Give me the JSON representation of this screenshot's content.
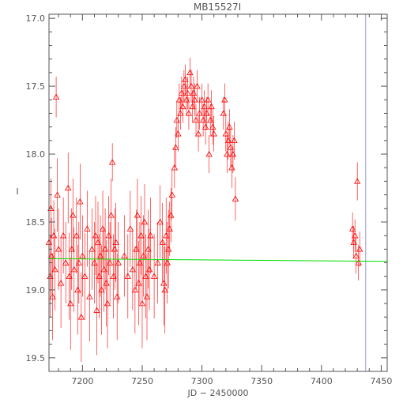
{
  "chart_data": {
    "type": "scatter",
    "title": "MB15527I",
    "xlabel": "JD − 2450000",
    "ylabel": "I",
    "xlim": [
      7172,
      7455
    ],
    "ylim": [
      19.6,
      16.97
    ],
    "y_axis_inverted": true,
    "x_ticks": [
      "7200",
      "7250",
      "7300",
      "7350",
      "7400",
      "7450"
    ],
    "y_ticks": [
      "17.0",
      "17.5",
      "18.0",
      "18.5",
      "19.0",
      "19.5"
    ],
    "grid": false,
    "legend": "none",
    "colors": {
      "points": "#ff0000",
      "baseline": "#00dd00",
      "marker": "#9999cc",
      "axes": "#555555"
    },
    "baseline": {
      "x": [
        7172,
        7455
      ],
      "y": [
        18.77,
        18.79
      ]
    },
    "vertical_marker_x": 7437,
    "series": [
      {
        "marker": "open-triangle",
        "x": [
          7172,
          7173,
          7173.5,
          7174,
          7175,
          7176,
          7177,
          7178,
          7179,
          7180,
          7182,
          7184,
          7186,
          7188,
          7189,
          7190,
          7191,
          7192,
          7193,
          7195,
          7196,
          7197,
          7198,
          7199,
          7200,
          7202,
          7204,
          7206,
          7208,
          7210,
          7211,
          7212,
          7213,
          7214,
          7215,
          7216,
          7217,
          7218,
          7219,
          7220,
          7221,
          7222,
          7223,
          7224,
          7225,
          7226,
          7227,
          7228,
          7229,
          7230,
          7235,
          7238,
          7240,
          7242,
          7244,
          7245,
          7246,
          7247,
          7248,
          7249,
          7250,
          7251,
          7252,
          7253,
          7254,
          7255,
          7256,
          7257,
          7260,
          7263,
          7265,
          7267,
          7268,
          7269,
          7270,
          7271,
          7272,
          7273,
          7274,
          7275,
          7277,
          7278,
          7279,
          7280,
          7281,
          7282,
          7283,
          7284,
          7285,
          7286,
          7287,
          7288,
          7289,
          7290,
          7291,
          7292,
          7293,
          7294,
          7295,
          7296,
          7297,
          7298,
          7300,
          7301,
          7302,
          7303,
          7304,
          7305,
          7306,
          7307,
          7308,
          7309,
          7310,
          7318,
          7319,
          7320,
          7321,
          7322,
          7323,
          7324,
          7325,
          7326,
          7327,
          7328,
          7426,
          7427,
          7428,
          7429,
          7430,
          7431,
          7432
        ],
        "y": [
          18.65,
          18.9,
          18.4,
          18.75,
          19.05,
          18.6,
          18.85,
          17.58,
          18.3,
          18.7,
          18.95,
          18.6,
          18.8,
          18.25,
          18.9,
          19.1,
          18.7,
          18.45,
          18.85,
          18.6,
          19.0,
          18.8,
          18.35,
          19.2,
          18.75,
          18.9,
          18.55,
          19.05,
          18.7,
          18.8,
          18.6,
          19.15,
          18.65,
          18.9,
          18.75,
          19.0,
          18.55,
          18.85,
          18.7,
          18.95,
          19.1,
          18.6,
          18.8,
          18.45,
          18.06,
          18.9,
          18.7,
          18.65,
          19.05,
          18.8,
          18.75,
          18.9,
          18.55,
          18.85,
          19.0,
          18.7,
          18.45,
          18.95,
          18.8,
          18.6,
          19.1,
          18.75,
          18.5,
          18.9,
          19.05,
          18.7,
          18.85,
          18.6,
          18.9,
          18.8,
          18.5,
          18.65,
          18.95,
          19.0,
          18.6,
          18.8,
          18.7,
          18.55,
          18.45,
          18.3,
          18.1,
          17.95,
          17.75,
          17.85,
          17.6,
          17.7,
          17.55,
          17.65,
          17.5,
          17.45,
          17.6,
          17.55,
          17.7,
          17.4,
          17.5,
          17.65,
          17.55,
          17.6,
          17.75,
          17.5,
          17.85,
          17.7,
          17.6,
          17.75,
          17.65,
          17.8,
          17.7,
          17.6,
          18.0,
          17.75,
          17.65,
          17.8,
          17.85,
          17.7,
          17.6,
          17.85,
          18.0,
          17.9,
          17.8,
          17.95,
          18.1,
          18.0,
          17.9,
          18.33,
          18.55,
          18.65,
          18.6,
          18.75,
          18.2,
          18.8,
          18.7
        ],
        "err": [
          0.25,
          0.3,
          0.22,
          0.28,
          0.32,
          0.26,
          0.3,
          0.15,
          0.27,
          0.3,
          0.33,
          0.28,
          0.3,
          0.26,
          0.32,
          0.34,
          0.3,
          0.27,
          0.31,
          0.28,
          0.33,
          0.3,
          0.28,
          0.33,
          0.3,
          0.32,
          0.28,
          0.33,
          0.3,
          0.3,
          0.29,
          0.33,
          0.3,
          0.31,
          0.3,
          0.33,
          0.28,
          0.31,
          0.3,
          0.32,
          0.33,
          0.29,
          0.3,
          0.27,
          0.14,
          0.31,
          0.3,
          0.29,
          0.32,
          0.3,
          0.3,
          0.31,
          0.28,
          0.3,
          0.32,
          0.29,
          0.27,
          0.31,
          0.3,
          0.29,
          0.33,
          0.3,
          0.28,
          0.31,
          0.32,
          0.29,
          0.3,
          0.28,
          0.31,
          0.3,
          0.27,
          0.29,
          0.31,
          0.32,
          0.28,
          0.3,
          0.29,
          0.2,
          0.2,
          0.18,
          0.15,
          0.15,
          0.13,
          0.13,
          0.12,
          0.12,
          0.12,
          0.12,
          0.12,
          0.11,
          0.12,
          0.12,
          0.12,
          0.11,
          0.12,
          0.12,
          0.12,
          0.12,
          0.12,
          0.12,
          0.13,
          0.12,
          0.12,
          0.12,
          0.12,
          0.13,
          0.12,
          0.12,
          0.14,
          0.12,
          0.12,
          0.13,
          0.13,
          0.12,
          0.12,
          0.13,
          0.14,
          0.14,
          0.13,
          0.14,
          0.15,
          0.14,
          0.14,
          0.16,
          0.12,
          0.12,
          0.12,
          0.13,
          0.14,
          0.13,
          0.13
        ]
      }
    ]
  }
}
